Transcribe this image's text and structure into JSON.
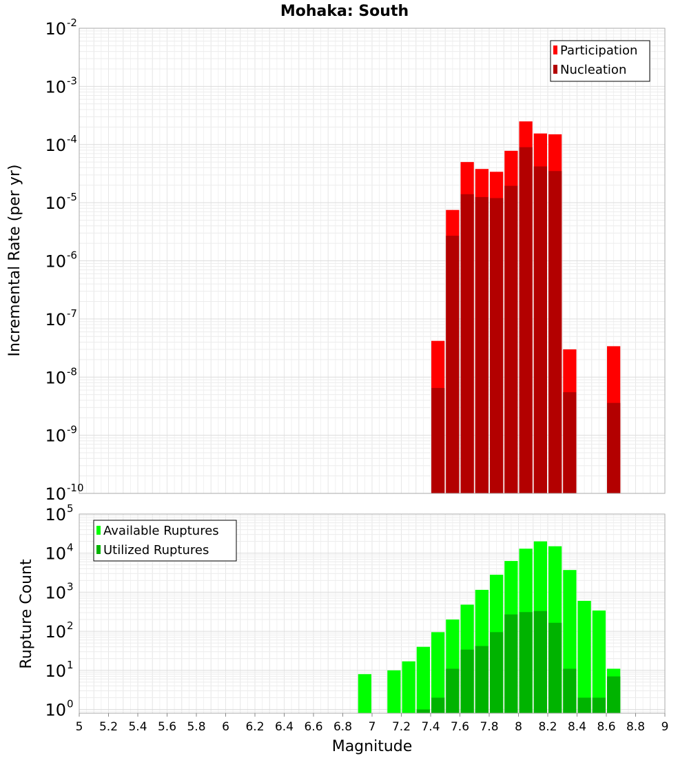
{
  "chart_data": [
    {
      "type": "bar",
      "title": "Mohaka: South",
      "xlabel": "",
      "ylabel": "Incremental Rate (per yr)",
      "yscale": "log",
      "ylim": [
        1e-10,
        0.01
      ],
      "xlim": [
        5,
        9
      ],
      "grid": true,
      "legend_position": "top-right",
      "y_ticks": [
        {
          "base": "10",
          "exp": "-2",
          "value": 0.01
        },
        {
          "base": "10",
          "exp": "-3",
          "value": 0.001
        },
        {
          "base": "10",
          "exp": "-4",
          "value": 0.0001
        },
        {
          "base": "10",
          "exp": "-5",
          "value": 1e-05
        },
        {
          "base": "10",
          "exp": "-6",
          "value": 1e-06
        },
        {
          "base": "10",
          "exp": "-7",
          "value": 1e-07
        },
        {
          "base": "10",
          "exp": "-8",
          "value": 1e-08
        },
        {
          "base": "10",
          "exp": "-9",
          "value": 1e-09
        },
        {
          "base": "10",
          "exp": "-10",
          "value": 1e-10
        }
      ],
      "bar_width": 0.1,
      "series": [
        {
          "name": "Participation",
          "color": "#ff0000",
          "points": [
            {
              "x": 7.45,
              "y": 4.2e-08
            },
            {
              "x": 7.55,
              "y": 7.5e-06
            },
            {
              "x": 7.65,
              "y": 5e-05
            },
            {
              "x": 7.75,
              "y": 3.8e-05
            },
            {
              "x": 7.85,
              "y": 3.4e-05
            },
            {
              "x": 7.95,
              "y": 7.8e-05
            },
            {
              "x": 8.05,
              "y": 0.00025
            },
            {
              "x": 8.15,
              "y": 0.000155
            },
            {
              "x": 8.25,
              "y": 0.00015
            },
            {
              "x": 8.35,
              "y": 3e-08
            },
            {
              "x": 8.65,
              "y": 3.4e-08
            }
          ]
        },
        {
          "name": "Nucleation",
          "color": "#b30000",
          "points": [
            {
              "x": 7.45,
              "y": 6.5e-09
            },
            {
              "x": 7.55,
              "y": 2.7e-06
            },
            {
              "x": 7.65,
              "y": 1.4e-05
            },
            {
              "x": 7.75,
              "y": 1.25e-05
            },
            {
              "x": 7.85,
              "y": 1.2e-05
            },
            {
              "x": 7.95,
              "y": 1.95e-05
            },
            {
              "x": 8.05,
              "y": 9e-05
            },
            {
              "x": 8.15,
              "y": 4.2e-05
            },
            {
              "x": 8.25,
              "y": 3.5e-05
            },
            {
              "x": 8.35,
              "y": 5.5e-09
            },
            {
              "x": 8.65,
              "y": 3.6e-09
            }
          ]
        }
      ]
    },
    {
      "type": "bar",
      "title": "",
      "xlabel": "Magnitude",
      "ylabel": "Rupture Count",
      "yscale": "log",
      "ylim": [
        0.8,
        100000
      ],
      "xlim": [
        5,
        9
      ],
      "grid": true,
      "legend_position": "top-left",
      "x_ticks": [
        "5",
        "5.2",
        "5.4",
        "5.6",
        "5.8",
        "6",
        "6.2",
        "6.4",
        "6.6",
        "6.8",
        "7",
        "7.2",
        "7.4",
        "7.6",
        "7.8",
        "8",
        "8.2",
        "8.4",
        "8.6",
        "8.8",
        "9"
      ],
      "y_ticks": [
        {
          "base": "10",
          "exp": "5",
          "value": 100000
        },
        {
          "base": "10",
          "exp": "4",
          "value": 10000
        },
        {
          "base": "10",
          "exp": "3",
          "value": 1000
        },
        {
          "base": "10",
          "exp": "2",
          "value": 100
        },
        {
          "base": "10",
          "exp": "1",
          "value": 10
        },
        {
          "base": "10",
          "exp": "0",
          "value": 1
        }
      ],
      "bar_width": 0.1,
      "series": [
        {
          "name": "Available Ruptures",
          "color": "#00ff00",
          "points": [
            {
              "x": 6.95,
              "y": 8
            },
            {
              "x": 7.15,
              "y": 10
            },
            {
              "x": 7.25,
              "y": 17
            },
            {
              "x": 7.35,
              "y": 40
            },
            {
              "x": 7.45,
              "y": 95
            },
            {
              "x": 7.55,
              "y": 200
            },
            {
              "x": 7.65,
              "y": 480
            },
            {
              "x": 7.75,
              "y": 1150
            },
            {
              "x": 7.85,
              "y": 2800
            },
            {
              "x": 7.95,
              "y": 6300
            },
            {
              "x": 8.05,
              "y": 13000
            },
            {
              "x": 8.15,
              "y": 20000
            },
            {
              "x": 8.25,
              "y": 15000
            },
            {
              "x": 8.35,
              "y": 3700
            },
            {
              "x": 8.45,
              "y": 600
            },
            {
              "x": 8.55,
              "y": 340
            },
            {
              "x": 8.65,
              "y": 11
            }
          ]
        },
        {
          "name": "Utilized Ruptures",
          "color": "#00b300",
          "points": [
            {
              "x": 7.35,
              "y": 1
            },
            {
              "x": 7.45,
              "y": 2
            },
            {
              "x": 7.55,
              "y": 11
            },
            {
              "x": 7.65,
              "y": 34
            },
            {
              "x": 7.75,
              "y": 42
            },
            {
              "x": 7.85,
              "y": 95
            },
            {
              "x": 7.95,
              "y": 270
            },
            {
              "x": 8.05,
              "y": 310
            },
            {
              "x": 8.15,
              "y": 330
            },
            {
              "x": 8.25,
              "y": 165
            },
            {
              "x": 8.35,
              "y": 11
            },
            {
              "x": 8.45,
              "y": 2
            },
            {
              "x": 8.55,
              "y": 2
            },
            {
              "x": 8.65,
              "y": 7
            }
          ]
        }
      ]
    }
  ]
}
